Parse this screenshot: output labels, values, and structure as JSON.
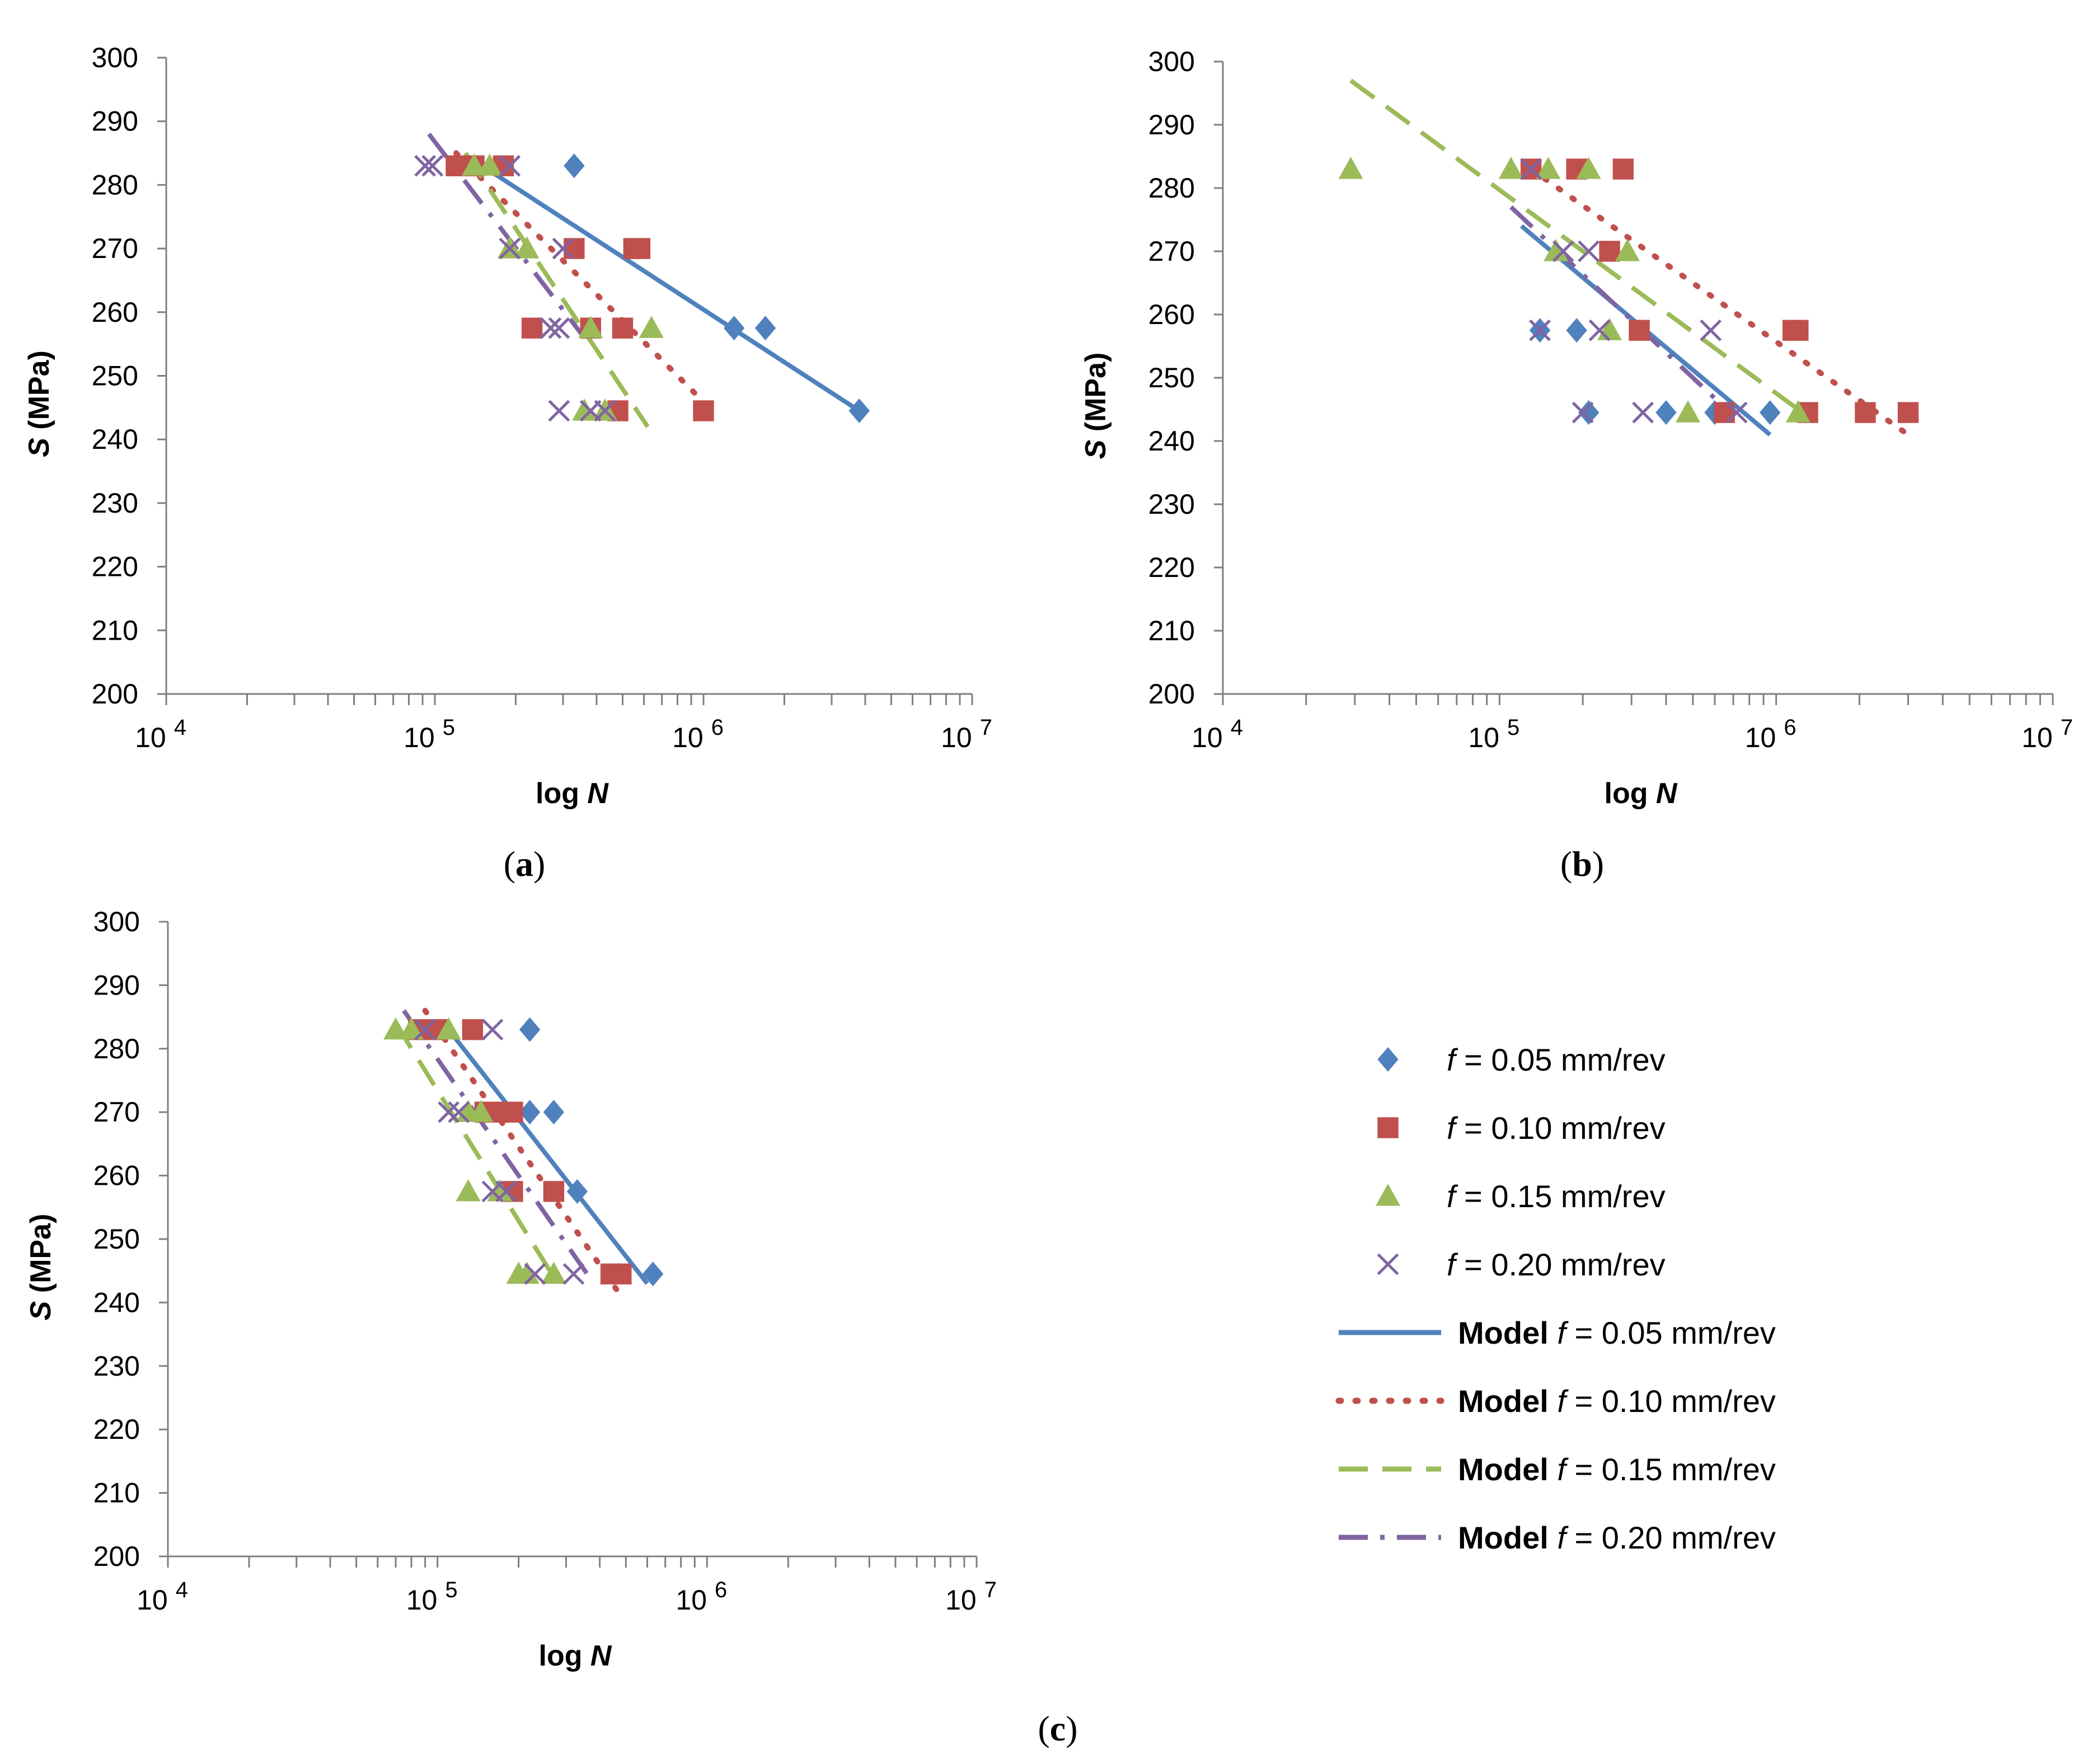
{
  "figure": {
    "legend": {
      "items": [
        {
          "prefix": "",
          "var": "f",
          "text": " = 0.05 mm/rev",
          "kind": "marker",
          "marker": "diamond",
          "color": "#4F81BD"
        },
        {
          "prefix": "",
          "var": "f",
          "text": " = 0.10 mm/rev",
          "kind": "marker",
          "marker": "square",
          "color": "#C0504D"
        },
        {
          "prefix": "",
          "var": "f",
          "text": " = 0.15 mm/rev",
          "kind": "marker",
          "marker": "triangle",
          "color": "#9BBB59"
        },
        {
          "prefix": "",
          "var": "f",
          "text": " = 0.20 mm/rev",
          "kind": "marker",
          "marker": "cross",
          "color": "#8064A2"
        },
        {
          "prefix": "Model ",
          "var": "f",
          "text": " = 0.05 mm/rev",
          "kind": "line",
          "dash": "solid",
          "color": "#4F81BD"
        },
        {
          "prefix": "Model ",
          "var": "f",
          "text": " = 0.10 mm/rev",
          "kind": "line",
          "dash": "dot",
          "color": "#C0504D"
        },
        {
          "prefix": "Model ",
          "var": "f",
          "text": " = 0.15 mm/rev",
          "kind": "line",
          "dash": "dash",
          "color": "#9BBB59"
        },
        {
          "prefix": "Model ",
          "var": "f",
          "text": " = 0.20 mm/rev",
          "kind": "line",
          "dash": "dashdot",
          "color": "#8064A2"
        }
      ]
    }
  },
  "chart_data": [
    {
      "type": "scatter",
      "panel_label": "(a)",
      "xlabel": "log N",
      "ylabel": "S (MPa)",
      "xscale": "log",
      "xlim_exp": [
        4,
        7
      ],
      "ylim": [
        200,
        300
      ],
      "xtick_labels": [
        "10^4",
        "10^5",
        "10^6",
        "10^7"
      ],
      "ytick_labels": [
        "200",
        "210",
        "220",
        "230",
        "240",
        "250",
        "260",
        "270",
        "280",
        "290",
        "300"
      ],
      "series": [
        {
          "name": "f = 0.05 mm/rev",
          "marker": "diamond",
          "color": "#4F81BD",
          "points": [
            [
              330000,
              283
            ],
            [
              3800000,
              244.5
            ],
            [
              1300000,
              257.5
            ],
            [
              1700000,
              257.5
            ]
          ]
        },
        {
          "name": "f = 0.10 mm/rev",
          "marker": "square",
          "color": "#C0504D",
          "points": [
            [
              120000,
              283
            ],
            [
              140000,
              283
            ],
            [
              180000,
              283
            ],
            [
              330000,
              270
            ],
            [
              550000,
              270
            ],
            [
              580000,
              270
            ],
            [
              230000,
              257.5
            ],
            [
              380000,
              257.5
            ],
            [
              500000,
              257.5
            ],
            [
              1000000,
              244.5
            ],
            [
              480000,
              244.5
            ]
          ]
        },
        {
          "name": "f = 0.15 mm/rev",
          "marker": "triangle",
          "color": "#9BBB59",
          "points": [
            [
              140000,
              283
            ],
            [
              160000,
              283
            ],
            [
              190000,
              270
            ],
            [
              220000,
              270
            ],
            [
              380000,
              257.5
            ],
            [
              640000,
              257.5
            ],
            [
              360000,
              244.5
            ],
            [
              430000,
              244.5
            ]
          ]
        },
        {
          "name": "f = 0.20 mm/rev",
          "marker": "cross",
          "color": "#8064A2",
          "points": [
            [
              92000,
              283
            ],
            [
              98000,
              283
            ],
            [
              190000,
              283
            ],
            [
              190000,
              270
            ],
            [
              300000,
              270
            ],
            [
              270000,
              257.5
            ],
            [
              290000,
              257.5
            ],
            [
              290000,
              244.5
            ],
            [
              380000,
              244.5
            ],
            [
              430000,
              244.5
            ]
          ]
        }
      ],
      "models": [
        {
          "name": "Model f = 0.05 mm/rev",
          "dash": "solid",
          "color": "#4F81BD",
          "points": [
            [
              150000,
              283
            ],
            [
              3800000,
              244.5
            ]
          ]
        },
        {
          "name": "Model f = 0.10 mm/rev",
          "dash": "dot",
          "color": "#C0504D",
          "points": [
            [
              120000,
              285
            ],
            [
              1050000,
              245
            ]
          ]
        },
        {
          "name": "Model f = 0.15 mm/rev",
          "dash": "dash",
          "color": "#9BBB59",
          "points": [
            [
              130000,
              285
            ],
            [
              620000,
              242
            ]
          ]
        },
        {
          "name": "Model f = 0.20 mm/rev",
          "dash": "dashdot",
          "color": "#8064A2",
          "points": [
            [
              95000,
              288
            ],
            [
              360000,
              256
            ]
          ]
        }
      ]
    },
    {
      "type": "scatter",
      "panel_label": "(b)",
      "xlabel": "log N",
      "ylabel": "S (MPa)",
      "xscale": "log",
      "xlim_exp": [
        4,
        7
      ],
      "ylim": [
        200,
        300
      ],
      "xtick_labels": [
        "10^4",
        "10^5",
        "10^6",
        "10^7"
      ],
      "ytick_labels": [
        "200",
        "210",
        "220",
        "230",
        "240",
        "250",
        "260",
        "270",
        "280",
        "290",
        "300"
      ],
      "series": [
        {
          "name": "f = 0.05 mm/rev",
          "marker": "diamond",
          "color": "#4F81BD",
          "points": [
            [
              140000,
              257.5
            ],
            [
              190000,
              257.5
            ],
            [
              210000,
              244.5
            ],
            [
              400000,
              244.5
            ],
            [
              600000,
              244.5
            ],
            [
              950000,
              244.5
            ]
          ]
        },
        {
          "name": "f = 0.10 mm/rev",
          "marker": "square",
          "color": "#C0504D",
          "points": [
            [
              130000,
              283
            ],
            [
              190000,
              283
            ],
            [
              280000,
              283
            ],
            [
              250000,
              270
            ],
            [
              320000,
              257.5
            ],
            [
              1150000,
              257.5
            ],
            [
              1200000,
              257.5
            ],
            [
              650000,
              244.5
            ],
            [
              1300000,
              244.5
            ],
            [
              2100000,
              244.5
            ],
            [
              3000000,
              244.5
            ]
          ]
        },
        {
          "name": "f = 0.15 mm/rev",
          "marker": "triangle",
          "color": "#9BBB59",
          "points": [
            [
              29000,
              283
            ],
            [
              110000,
              283
            ],
            [
              150000,
              283
            ],
            [
              210000,
              283
            ],
            [
              160000,
              270
            ],
            [
              290000,
              270
            ],
            [
              250000,
              257.5
            ],
            [
              480000,
              244.5
            ],
            [
              1200000,
              244.5
            ]
          ]
        },
        {
          "name": "f = 0.20 mm/rev",
          "marker": "cross",
          "color": "#8064A2",
          "points": [
            [
              130000,
              283
            ],
            [
              170000,
              270
            ],
            [
              210000,
              270
            ],
            [
              140000,
              257.5
            ],
            [
              230000,
              257.5
            ],
            [
              580000,
              257.5
            ],
            [
              200000,
              244.5
            ],
            [
              330000,
              244.5
            ],
            [
              720000,
              244.5
            ]
          ]
        }
      ],
      "models": [
        {
          "name": "Model f = 0.05 mm/rev",
          "dash": "solid",
          "color": "#4F81BD",
          "points": [
            [
              120000,
              274
            ],
            [
              950000,
              241
            ]
          ]
        },
        {
          "name": "Model f = 0.10 mm/rev",
          "dash": "dot",
          "color": "#C0504D",
          "points": [
            [
              130000,
              283
            ],
            [
              3000000,
              241
            ]
          ]
        },
        {
          "name": "Model f = 0.15 mm/rev",
          "dash": "dash",
          "color": "#9BBB59",
          "points": [
            [
              29000,
              297
            ],
            [
              1200000,
              245
            ]
          ]
        },
        {
          "name": "Model f = 0.20 mm/rev",
          "dash": "dashdot",
          "color": "#8064A2",
          "points": [
            [
              110000,
              277
            ],
            [
              700000,
              244
            ]
          ]
        }
      ]
    },
    {
      "type": "scatter",
      "panel_label": "(c)",
      "xlabel": "log N",
      "ylabel": "S (MPa)",
      "xscale": "log",
      "xlim_exp": [
        4,
        7
      ],
      "ylim": [
        200,
        300
      ],
      "xtick_labels": [
        "10^4",
        "10^5",
        "10^6",
        "10^7"
      ],
      "ytick_labels": [
        "200",
        "210",
        "220",
        "230",
        "240",
        "250",
        "260",
        "270",
        "280",
        "290",
        "300"
      ],
      "series": [
        {
          "name": "f = 0.05 mm/rev",
          "marker": "diamond",
          "color": "#4F81BD",
          "points": [
            [
              220000,
              283
            ],
            [
              220000,
              270
            ],
            [
              270000,
              270
            ],
            [
              330000,
              257.5
            ],
            [
              630000,
              244.5
            ]
          ]
        },
        {
          "name": "f = 0.10 mm/rev",
          "marker": "square",
          "color": "#C0504D",
          "points": [
            [
              85000,
              283
            ],
            [
              100000,
              283
            ],
            [
              135000,
              283
            ],
            [
              150000,
              270
            ],
            [
              170000,
              270
            ],
            [
              190000,
              270
            ],
            [
              190000,
              257.5
            ],
            [
              270000,
              257.5
            ],
            [
              440000,
              244.5
            ],
            [
              480000,
              244.5
            ]
          ]
        },
        {
          "name": "f = 0.15 mm/rev",
          "marker": "triangle",
          "color": "#9BBB59",
          "points": [
            [
              70000,
              283
            ],
            [
              80000,
              283
            ],
            [
              110000,
              283
            ],
            [
              130000,
              270
            ],
            [
              145000,
              270
            ],
            [
              130000,
              257.5
            ],
            [
              170000,
              257.5
            ],
            [
              200000,
              244.5
            ],
            [
              215000,
              244.5
            ],
            [
              270000,
              244.5
            ]
          ]
        },
        {
          "name": "f = 0.20 mm/rev",
          "marker": "cross",
          "color": "#8064A2",
          "points": [
            [
              90000,
              283
            ],
            [
              160000,
              283
            ],
            [
              110000,
              270
            ],
            [
              120000,
              270
            ],
            [
              160000,
              257.5
            ],
            [
              180000,
              257.5
            ],
            [
              230000,
              244.5
            ],
            [
              320000,
              244.5
            ]
          ]
        }
      ],
      "models": [
        {
          "name": "Model f = 0.05 mm/rev",
          "dash": "solid",
          "color": "#4F81BD",
          "points": [
            [
              110000,
              283
            ],
            [
              600000,
              243
            ]
          ]
        },
        {
          "name": "Model f = 0.10 mm/rev",
          "dash": "dot",
          "color": "#C0504D",
          "points": [
            [
              90000,
              286
            ],
            [
              480000,
              241
            ]
          ]
        },
        {
          "name": "Model f = 0.15 mm/rev",
          "dash": "dash",
          "color": "#9BBB59",
          "points": [
            [
              70000,
              284
            ],
            [
              270000,
              244
            ]
          ]
        },
        {
          "name": "Model f = 0.20 mm/rev",
          "dash": "dashdot",
          "color": "#8064A2",
          "points": [
            [
              75000,
              286
            ],
            [
              380000,
              243
            ]
          ]
        }
      ]
    }
  ]
}
